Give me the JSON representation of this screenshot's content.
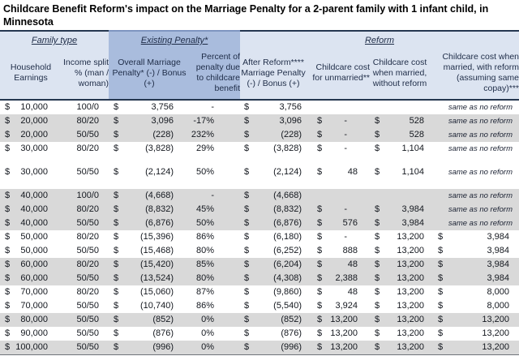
{
  "title": "Childcare Benefit Reform's impact on the Marriage Penalty for a 2-parent family with 1 infant child, in Minnesota",
  "colors": {
    "band_blue": "#a9bcdd",
    "header_lavender": "#dce4f1",
    "row_shade_gray": "#d9d9d9",
    "rule_dark_navy": "#253750",
    "header_text": "#1e2c47",
    "data_text": "#14181f"
  },
  "header": {
    "groups": [
      {
        "label": "Family type",
        "span": 2
      },
      {
        "label": "Existing Penalty*",
        "span": 2
      },
      {
        "label": "Reform",
        "span": 4
      }
    ],
    "columns": [
      {
        "label": "Household Earnings"
      },
      {
        "label": "Income split % (man / woman)"
      },
      {
        "label": "Overall Marriage Penalty* (-) / Bonus (+)"
      },
      {
        "label": "Percent of penalty due to childcare benefit"
      },
      {
        "label": "After Reform**** Marriage Penalty (-) / Bonus (+)"
      },
      {
        "label": "Childcare cost for unmarried**"
      },
      {
        "label": "Childcare cost when married, without reform"
      },
      {
        "label": "Childcare cost when married, with reform (assuming same copay)***"
      }
    ]
  },
  "table": {
    "currency_symbol": "$",
    "spacers_after": [
      3,
      4
    ],
    "rows": [
      {
        "shade": false,
        "earnings": "10,000",
        "split": "100/0",
        "existing": "3,756",
        "pct": "-",
        "after": "3,756",
        "unmarried": "",
        "married_no_reform": "",
        "married_with_reform": "",
        "note": "same as no reform"
      },
      {
        "shade": true,
        "earnings": "20,000",
        "split": "80/20",
        "existing": "3,096",
        "pct": "-17%",
        "after": "3,096",
        "unmarried": "-",
        "married_no_reform": "528",
        "married_with_reform": "",
        "note": "same as no reform"
      },
      {
        "shade": true,
        "earnings": "20,000",
        "split": "50/50",
        "existing": "(228)",
        "pct": "232%",
        "after": "(228)",
        "unmarried": "-",
        "married_no_reform": "528",
        "married_with_reform": "",
        "note": "same as no reform"
      },
      {
        "shade": false,
        "earnings": "30,000",
        "split": "80/20",
        "existing": "(3,828)",
        "pct": "29%",
        "after": "(3,828)",
        "unmarried": "-",
        "married_no_reform": "1,104",
        "married_with_reform": "",
        "note": "same as no reform"
      },
      {
        "shade": false,
        "earnings": "30,000",
        "split": "50/50",
        "existing": "(2,124)",
        "pct": "50%",
        "after": "(2,124)",
        "unmarried": "48",
        "married_no_reform": "1,104",
        "married_with_reform": "",
        "note": "same as no reform"
      },
      {
        "shade": true,
        "earnings": "40,000",
        "split": "100/0",
        "existing": "(4,668)",
        "pct": "-",
        "after": "(4,668)",
        "unmarried": "",
        "married_no_reform": "",
        "married_with_reform": "",
        "note": "same as no reform"
      },
      {
        "shade": true,
        "earnings": "40,000",
        "split": "80/20",
        "existing": "(8,832)",
        "pct": "45%",
        "after": "(8,832)",
        "unmarried": "-",
        "married_no_reform": "3,984",
        "married_with_reform": "",
        "note": "same as no reform"
      },
      {
        "shade": true,
        "earnings": "40,000",
        "split": "50/50",
        "existing": "(6,876)",
        "pct": "50%",
        "after": "(6,876)",
        "unmarried": "576",
        "married_no_reform": "3,984",
        "married_with_reform": "",
        "note": "same as no reform"
      },
      {
        "shade": false,
        "earnings": "50,000",
        "split": "80/20",
        "existing": "(15,396)",
        "pct": "86%",
        "after": "(6,180)",
        "unmarried": "-",
        "married_no_reform": "13,200",
        "married_with_reform": "3,984",
        "note": ""
      },
      {
        "shade": false,
        "earnings": "50,000",
        "split": "50/50",
        "existing": "(15,468)",
        "pct": "80%",
        "after": "(6,252)",
        "unmarried": "888",
        "married_no_reform": "13,200",
        "married_with_reform": "3,984",
        "note": ""
      },
      {
        "shade": true,
        "earnings": "60,000",
        "split": "80/20",
        "existing": "(15,420)",
        "pct": "85%",
        "after": "(6,204)",
        "unmarried": "48",
        "married_no_reform": "13,200",
        "married_with_reform": "3,984",
        "note": ""
      },
      {
        "shade": true,
        "earnings": "60,000",
        "split": "50/50",
        "existing": "(13,524)",
        "pct": "80%",
        "after": "(4,308)",
        "unmarried": "2,388",
        "married_no_reform": "13,200",
        "married_with_reform": "3,984",
        "note": ""
      },
      {
        "shade": false,
        "earnings": "70,000",
        "split": "80/20",
        "existing": "(15,060)",
        "pct": "87%",
        "after": "(9,860)",
        "unmarried": "48",
        "married_no_reform": "13,200",
        "married_with_reform": "8,000",
        "note": ""
      },
      {
        "shade": false,
        "earnings": "70,000",
        "split": "50/50",
        "existing": "(10,740)",
        "pct": "86%",
        "after": "(5,540)",
        "unmarried": "3,924",
        "married_no_reform": "13,200",
        "married_with_reform": "8,000",
        "note": ""
      },
      {
        "shade": true,
        "earnings": "80,000",
        "split": "50/50",
        "existing": "(852)",
        "pct": "0%",
        "after": "(852)",
        "unmarried": "13,200",
        "married_no_reform": "13,200",
        "married_with_reform": "13,200",
        "note": ""
      },
      {
        "shade": false,
        "earnings": "90,000",
        "split": "50/50",
        "existing": "(876)",
        "pct": "0%",
        "after": "(876)",
        "unmarried": "13,200",
        "married_no_reform": "13,200",
        "married_with_reform": "13,200",
        "note": ""
      },
      {
        "shade": true,
        "earnings": "100,000",
        "split": "50/50",
        "existing": "(996)",
        "pct": "0%",
        "after": "(996)",
        "unmarried": "13,200",
        "married_no_reform": "13,200",
        "married_with_reform": "13,200",
        "note": ""
      }
    ]
  }
}
